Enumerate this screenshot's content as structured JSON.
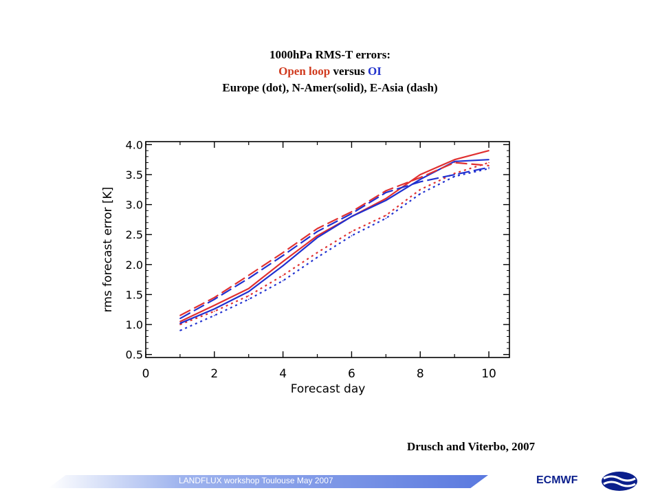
{
  "title": {
    "line1": "1000hPa RMS-T errors:",
    "line2_part1": "Open loop",
    "line2_part2": " versus ",
    "line2_part3": "OI",
    "line3": "Europe (dot), N-Amer(solid),  E-Asia (dash)"
  },
  "citation": "Drusch  and Viterbo,  2007",
  "footer": {
    "workshop": "LANDFLUX workshop Toulouse May 2007",
    "org": "ECMWF",
    "logo_icon": "ecmwf-logo-icon"
  },
  "colors": {
    "open_loop": "#e03030",
    "oi": "#2030d0",
    "title_red": "#d03a1e",
    "title_blue": "#2233cc"
  },
  "chart_data": {
    "type": "line",
    "xlabel": "Forecast day",
    "ylabel": "rms forecast error [K]",
    "xlim": [
      0,
      10.6
    ],
    "ylim": [
      0.45,
      4.05
    ],
    "xticks": [
      0,
      2,
      4,
      6,
      8,
      10
    ],
    "yticks": [
      0.5,
      1.0,
      1.5,
      2.0,
      2.5,
      3.0,
      3.5,
      4.0
    ],
    "xtick_labels": [
      "0",
      "2",
      "4",
      "6",
      "8",
      "10"
    ],
    "ytick_labels": [
      "0.5",
      "1.0",
      "1.5",
      "2.0",
      "2.5",
      "3.0",
      "3.5",
      "4.0"
    ],
    "x": [
      1,
      2,
      3,
      4,
      5,
      6,
      7,
      8,
      9,
      10
    ],
    "series": [
      {
        "key": "europe-open-loop",
        "color": "#e03030",
        "style": "dot",
        "values": [
          1.0,
          1.22,
          1.48,
          1.82,
          2.2,
          2.55,
          2.82,
          3.25,
          3.52,
          3.7
        ]
      },
      {
        "key": "europe-oi",
        "color": "#2030d0",
        "style": "dot",
        "values": [
          0.9,
          1.15,
          1.42,
          1.73,
          2.12,
          2.48,
          2.77,
          3.18,
          3.47,
          3.6
        ]
      },
      {
        "key": "namer-open-loop",
        "color": "#e03030",
        "style": "solid",
        "values": [
          1.05,
          1.32,
          1.6,
          2.05,
          2.48,
          2.8,
          3.1,
          3.5,
          3.75,
          3.9
        ]
      },
      {
        "key": "namer-oi",
        "color": "#2030d0",
        "style": "solid",
        "values": [
          1.02,
          1.26,
          1.55,
          1.98,
          2.45,
          2.8,
          3.07,
          3.42,
          3.72,
          3.75
        ]
      },
      {
        "key": "easia-open-loop",
        "color": "#e03030",
        "style": "dash",
        "values": [
          1.15,
          1.45,
          1.82,
          2.2,
          2.6,
          2.88,
          3.23,
          3.45,
          3.7,
          3.65
        ]
      },
      {
        "key": "easia-oi",
        "color": "#2030d0",
        "style": "dash",
        "values": [
          1.1,
          1.42,
          1.77,
          2.15,
          2.55,
          2.85,
          3.2,
          3.38,
          3.5,
          3.62
        ]
      }
    ]
  }
}
